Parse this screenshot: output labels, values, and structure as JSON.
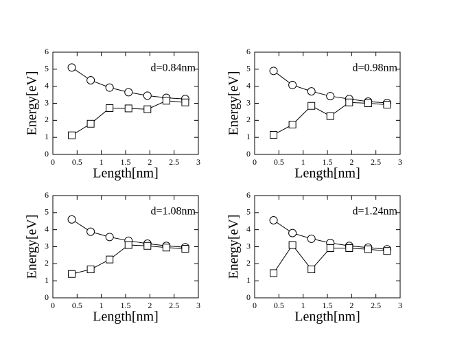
{
  "chart_data": [
    {
      "type": "line",
      "annotation": "d=0.84nm",
      "xlabel": "Length[nm]",
      "ylabel": "Energy[eV]",
      "x": [
        0.39,
        0.78,
        1.17,
        1.56,
        1.95,
        2.34,
        2.73
      ],
      "series": [
        {
          "color": "#000000",
          "marker": "circle",
          "values": [
            5.1,
            4.35,
            3.92,
            3.65,
            3.45,
            3.32,
            3.25
          ]
        },
        {
          "color": "#000000",
          "marker": "square",
          "values": [
            1.12,
            1.8,
            2.72,
            2.7,
            2.65,
            3.15,
            3.05
          ]
        }
      ],
      "xlim": [
        0,
        3
      ],
      "ylim": [
        0,
        6
      ],
      "xticks": [
        0,
        0.5,
        1,
        1.5,
        2,
        2.5,
        3
      ],
      "yticks": [
        0,
        1,
        2,
        3,
        4,
        5,
        6
      ]
    },
    {
      "type": "line",
      "annotation": "d=0.98nm",
      "xlabel": "Length[nm]",
      "ylabel": "Energy[eV]",
      "x": [
        0.39,
        0.78,
        1.17,
        1.56,
        1.95,
        2.34,
        2.73
      ],
      "series": [
        {
          "color": "#000000",
          "marker": "circle",
          "values": [
            4.9,
            4.07,
            3.7,
            3.42,
            3.25,
            3.1,
            3.02
          ]
        },
        {
          "color": "#000000",
          "marker": "square",
          "values": [
            1.15,
            1.75,
            2.85,
            2.25,
            3.05,
            3.0,
            2.92
          ]
        }
      ],
      "xlim": [
        0,
        3
      ],
      "ylim": [
        0,
        6
      ],
      "xticks": [
        0,
        0.5,
        1,
        1.5,
        2,
        2.5,
        3
      ],
      "yticks": [
        0,
        1,
        2,
        3,
        4,
        5,
        6
      ]
    },
    {
      "type": "line",
      "annotation": "d=1.08nm",
      "xlabel": "Length[nm]",
      "ylabel": "Energy[eV]",
      "x": [
        0.39,
        0.78,
        1.17,
        1.56,
        1.95,
        2.34,
        2.73
      ],
      "series": [
        {
          "color": "#000000",
          "marker": "circle",
          "values": [
            4.6,
            3.88,
            3.57,
            3.35,
            3.18,
            3.05,
            2.97
          ]
        },
        {
          "color": "#000000",
          "marker": "square",
          "values": [
            1.4,
            1.67,
            2.25,
            3.1,
            3.05,
            2.95,
            2.88
          ]
        }
      ],
      "xlim": [
        0,
        3
      ],
      "ylim": [
        0,
        6
      ],
      "xticks": [
        0,
        0.5,
        1,
        1.5,
        2,
        2.5,
        3
      ],
      "yticks": [
        0,
        1,
        2,
        3,
        4,
        5,
        6
      ]
    },
    {
      "type": "line",
      "annotation": "d=1.24nm",
      "xlabel": "Length[nm]",
      "ylabel": "Energy[eV]",
      "x": [
        0.39,
        0.78,
        1.17,
        1.56,
        1.95,
        2.34,
        2.73
      ],
      "series": [
        {
          "color": "#000000",
          "marker": "circle",
          "values": [
            4.55,
            3.8,
            3.47,
            3.22,
            3.05,
            2.95,
            2.85
          ]
        },
        {
          "color": "#000000",
          "marker": "square",
          "values": [
            1.45,
            3.1,
            1.67,
            2.92,
            2.92,
            2.85,
            2.75
          ]
        }
      ],
      "xlim": [
        0,
        3
      ],
      "ylim": [
        0,
        6
      ],
      "xticks": [
        0,
        0.5,
        1,
        1.5,
        2,
        2.5,
        3
      ],
      "yticks": [
        0,
        1,
        2,
        3,
        4,
        5,
        6
      ]
    }
  ]
}
